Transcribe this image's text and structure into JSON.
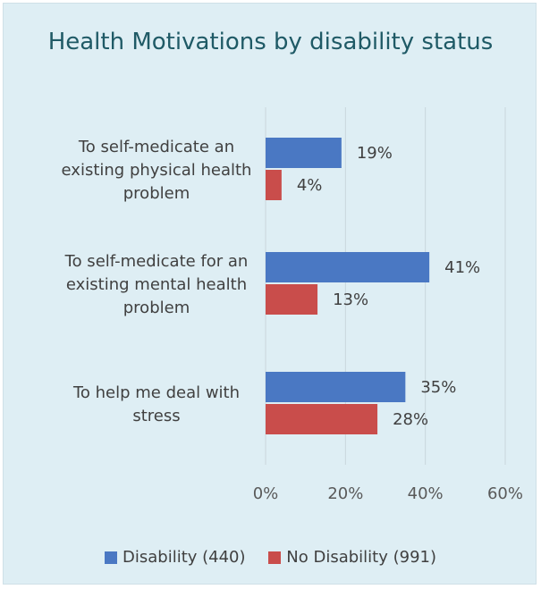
{
  "chart_data": {
    "type": "bar",
    "orientation": "horizontal",
    "title": "Health Motivations by disability status",
    "categories": [
      "To self-medicate an existing physical health problem",
      "To self-medicate for an existing mental health problem",
      "To help me deal with stress"
    ],
    "category_label_lines": [
      [
        "To self-medicate an",
        "existing physical health",
        "problem"
      ],
      [
        "To self-medicate for an",
        "existing mental health",
        "problem"
      ],
      [
        "To help me deal with",
        "stress"
      ]
    ],
    "series": [
      {
        "name": "Disability (440)",
        "color": "#4a78c3",
        "values": [
          19,
          41,
          35
        ],
        "labels": [
          "19%",
          "41%",
          "35%"
        ]
      },
      {
        "name": "No Disability (991)",
        "color": "#c94d4b",
        "values": [
          4,
          13,
          28
        ],
        "labels": [
          "4%",
          "13%",
          "28%"
        ]
      }
    ],
    "xlim": [
      0,
      60
    ],
    "xticks": [
      "0%",
      "20%",
      "40%",
      "60%"
    ],
    "grid": true,
    "legend_position": "bottom"
  }
}
